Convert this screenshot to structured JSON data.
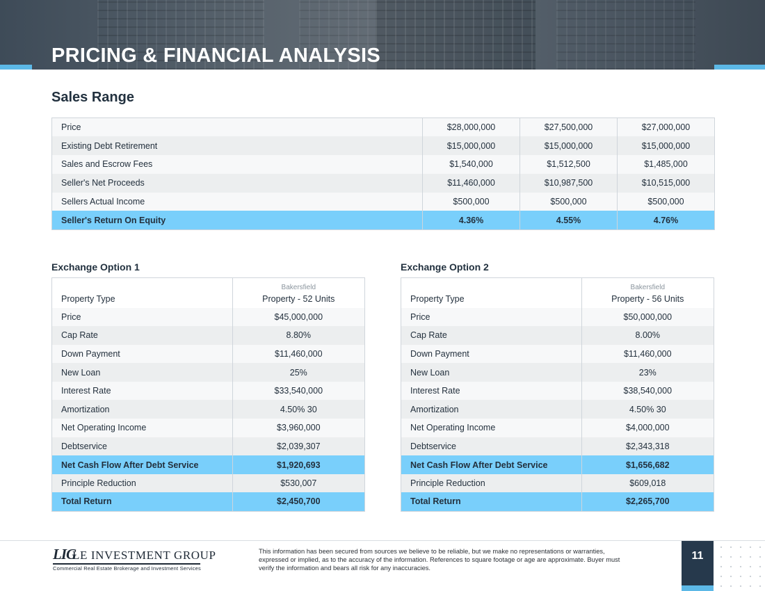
{
  "header": {
    "title": "PRICING & FINANCIAL ANALYSIS"
  },
  "sales_range": {
    "title": "Sales Range",
    "rows": [
      {
        "label": "Price",
        "v": [
          "$28,000,000",
          "$27,500,000",
          "$27,000,000"
        ]
      },
      {
        "label": "Existing Debt Retirement",
        "v": [
          "$15,000,000",
          "$15,000,000",
          "$15,000,000"
        ]
      },
      {
        "label": "Sales and Escrow Fees",
        "v": [
          "$1,540,000",
          "$1,512,500",
          "$1,485,000"
        ]
      },
      {
        "label": "Seller's Net Proceeds",
        "v": [
          "$11,460,000",
          "$10,987,500",
          "$10,515,000"
        ]
      },
      {
        "label": "Sellers Actual Income",
        "v": [
          "$500,000",
          "$500,000",
          "$500,000"
        ]
      },
      {
        "label": "Seller's Return On Equity",
        "v": [
          "4.36%",
          "4.55%",
          "4.76%"
        ]
      }
    ]
  },
  "exchange1": {
    "title": "Exchange Option 1",
    "location": "Bakersfield",
    "rows": [
      {
        "label": "Property Type",
        "value": "Property - 52 Units"
      },
      {
        "label": "Price",
        "value": "$45,000,000"
      },
      {
        "label": "Cap Rate",
        "value": "8.80%"
      },
      {
        "label": "Down Payment",
        "value": "$11,460,000"
      },
      {
        "label": "New Loan",
        "value": "25%"
      },
      {
        "label": "Interest Rate",
        "value": "$33,540,000"
      },
      {
        "label": "Amortization",
        "value": "4.50% 30"
      },
      {
        "label": "Net Operating Income",
        "value": "$3,960,000"
      },
      {
        "label": "Debtservice",
        "value": "$2,039,307"
      },
      {
        "label": "Net Cash Flow After Debt Service",
        "value": "$1,920,693"
      },
      {
        "label": "Principle Reduction",
        "value": "$530,007"
      },
      {
        "label": "Total Return",
        "value": "$2,450,700"
      }
    ]
  },
  "exchange2": {
    "title": "Exchange Option 2",
    "location": "Bakersfield",
    "rows": [
      {
        "label": "Property Type",
        "value": "Property - 56 Units"
      },
      {
        "label": "Price",
        "value": "$50,000,000"
      },
      {
        "label": "Cap Rate",
        "value": "8.00%"
      },
      {
        "label": "Down Payment",
        "value": "$11,460,000"
      },
      {
        "label": "New Loan",
        "value": "23%"
      },
      {
        "label": "Interest Rate",
        "value": "$38,540,000"
      },
      {
        "label": "Amortization",
        "value": "4.50% 30"
      },
      {
        "label": "Net Operating Income",
        "value": "$4,000,000"
      },
      {
        "label": "Debtservice",
        "value": "$2,343,318"
      },
      {
        "label": "Net Cash Flow After Debt Service",
        "value": "$1,656,682"
      },
      {
        "label": "Principle Reduction",
        "value": "$609,018"
      },
      {
        "label": "Total Return",
        "value": "$2,265,700"
      }
    ]
  },
  "footer": {
    "logo_mark": "LIG",
    "logo_name": "LE INVESTMENT GROUP",
    "logo_tagline": "Commercial Real Estate Brokerage and Investment Services",
    "disclaimer": "This information has been secured from sources we believe to be reliable, but we make no representations or warranties, expressed or implied, as to the accuracy of the information. References to square footage or age are approximate. Buyer must verify the information and bears all risk for any inaccuracies.",
    "page_number": "11"
  },
  "colors": {
    "highlight": "#79cffb",
    "accent": "#5cb8e6",
    "navy": "#26394c"
  }
}
